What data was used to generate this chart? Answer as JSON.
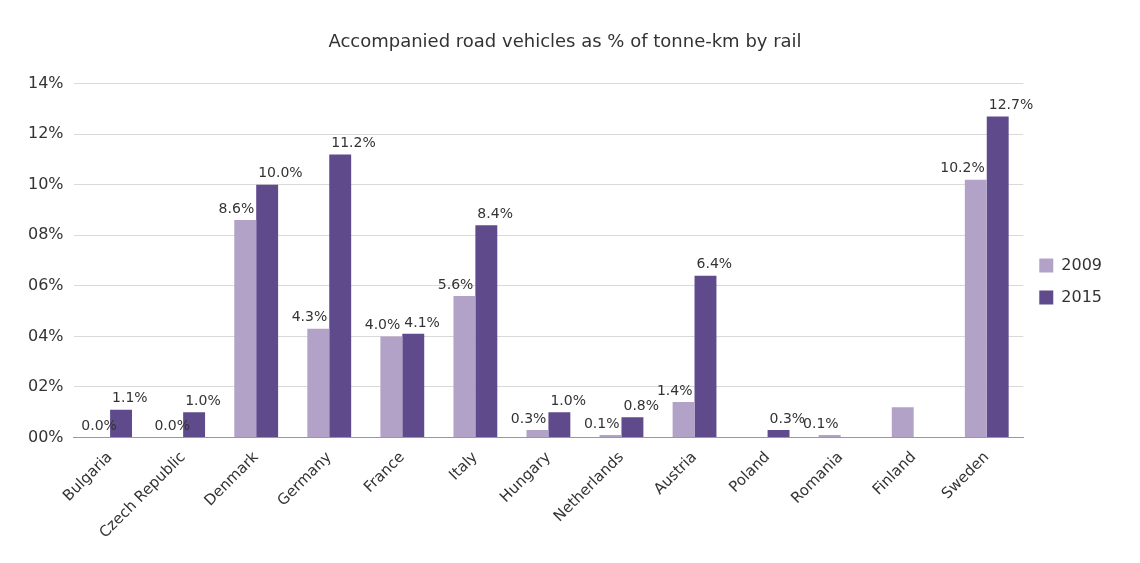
{
  "chart_data": {
    "type": "bar",
    "title": "Accompanied road vehicles as % of tonne-km by rail",
    "categories": [
      "Bulgaria",
      "Czech Republic",
      "Denmark",
      "Germany",
      "France",
      "Italy",
      "Hungary",
      "Netherlands",
      "Austria",
      "Poland",
      "Romania",
      "Finland",
      "Sweden"
    ],
    "series": [
      {
        "name": "2009",
        "color": "#b3a2c7",
        "values": [
          0,
          0,
          8.6,
          4.3,
          4.0,
          5.6,
          0.3,
          0.1,
          1.4,
          null,
          0.1,
          1.2,
          10.2
        ],
        "value_labels": [
          "0.0%",
          "0.0%",
          "8.6%",
          "4.3%",
          "4.0%",
          "5.6%",
          "0.3%",
          "0.1%",
          "1.4%",
          null,
          "0.1%",
          null,
          "10.2%"
        ]
      },
      {
        "name": "2015",
        "color": "#5f4b8b",
        "values": [
          1.1,
          1.0,
          10.0,
          11.2,
          4.1,
          8.4,
          1.0,
          0.8,
          6.4,
          0.3,
          null,
          null,
          12.7
        ],
        "value_labels": [
          "1.1%",
          "1.0%",
          "10.0%",
          "11.2%",
          "4.1%",
          "8.4%",
          "1.0%",
          "0.8%",
          "6.4%",
          "0.3%",
          null,
          null,
          "12.7%"
        ]
      }
    ],
    "ylim": [
      0,
      14
    ],
    "yticks": [
      {
        "value": 0,
        "label": "00%"
      },
      {
        "value": 2,
        "label": "02%"
      },
      {
        "value": 4,
        "label": "04%"
      },
      {
        "value": 6,
        "label": "06%"
      },
      {
        "value": 8,
        "label": "08%"
      },
      {
        "value": 10,
        "label": "10%"
      },
      {
        "value": 12,
        "label": "12%"
      },
      {
        "value": 14,
        "label": "14%"
      }
    ],
    "grid": "y",
    "legend": "right"
  }
}
